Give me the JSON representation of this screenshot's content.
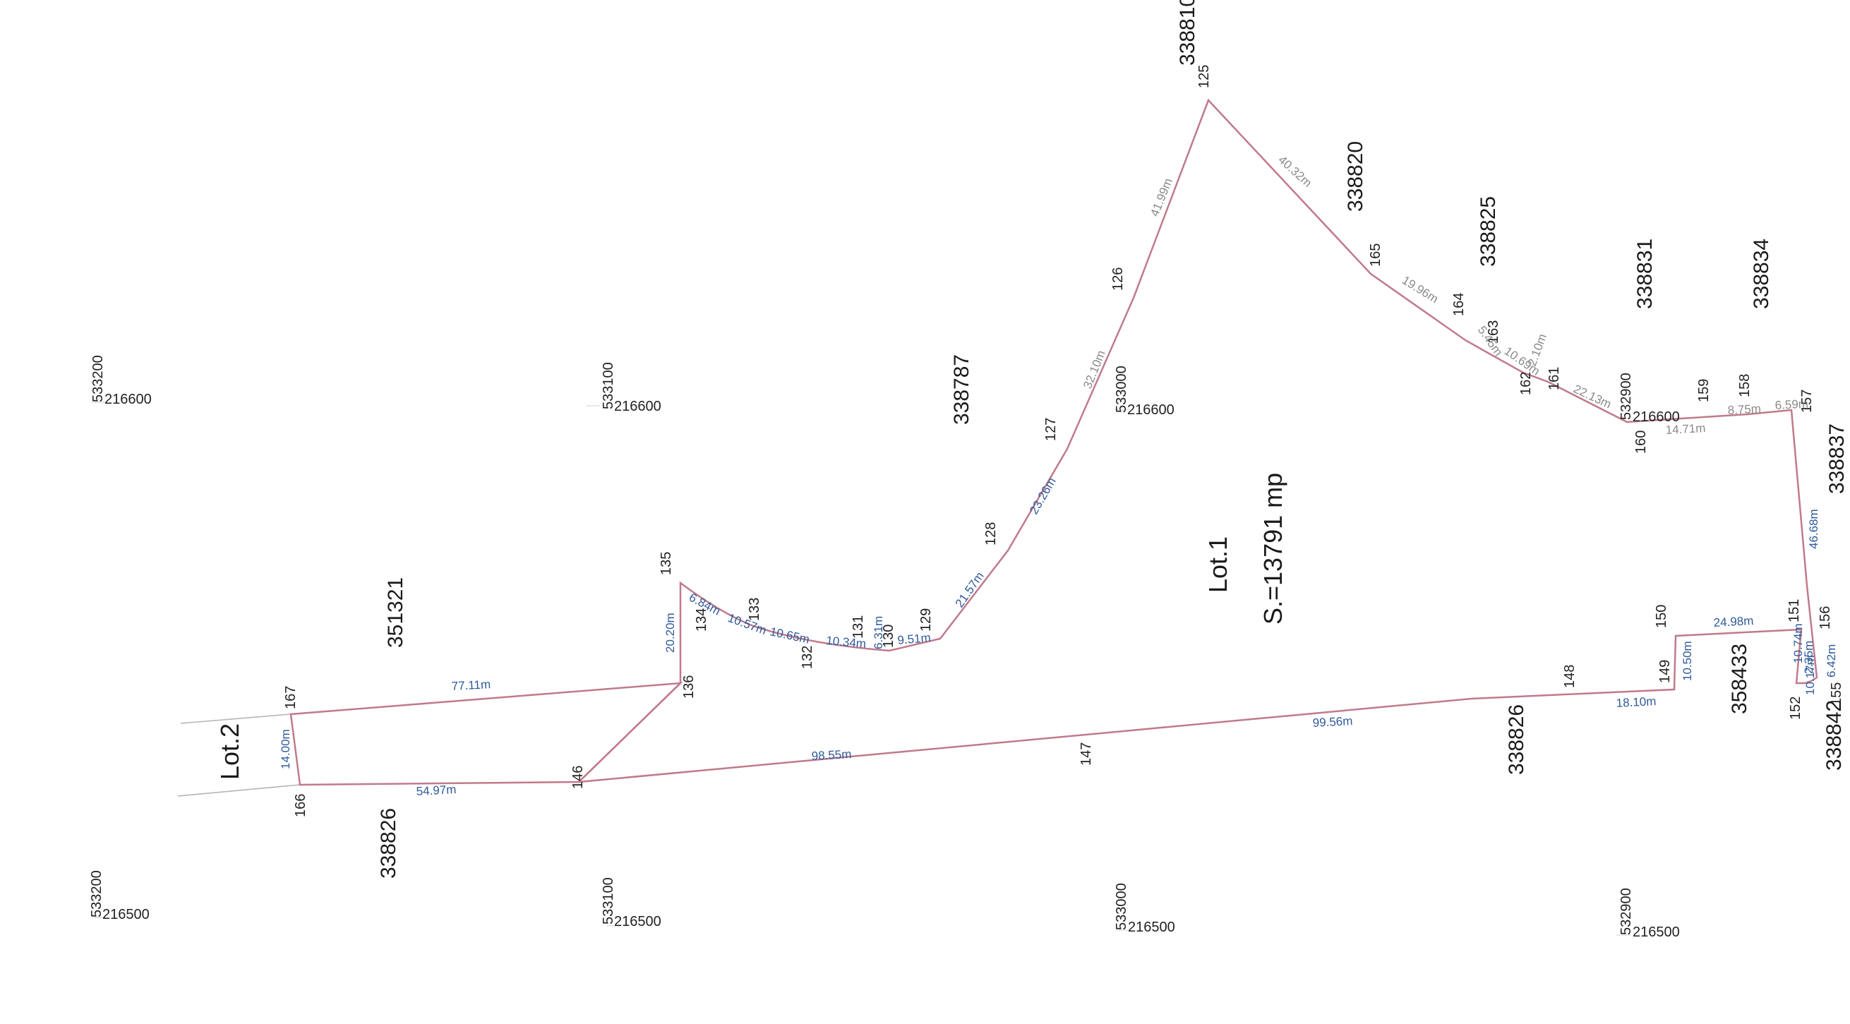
{
  "colors": {
    "boundary": "#c07a8c",
    "outer_line": "#b5b5b5",
    "label_blue": "#2f5a9a",
    "label_gray": "#8a8a8a",
    "text": "#1a1a1a"
  },
  "lots": {
    "lot1_label": "Lot.1",
    "lot1_area": "S.=13791 mp",
    "lot2_label": "Lot.2"
  },
  "boundary_lot1": [
    "125",
    "165",
    "164",
    "163",
    "162",
    "161",
    "160",
    "159",
    "158",
    "157",
    "156",
    "155",
    "154",
    "153",
    "152",
    "151",
    "150",
    "149",
    "148",
    "147",
    "146",
    "136",
    "135",
    "134",
    "133",
    "132",
    "131",
    "130",
    "129",
    "128",
    "127",
    "126"
  ],
  "boundary_lot2": [
    "167",
    "136",
    "146",
    "166"
  ],
  "points": [
    {
      "label": "125"
    },
    {
      "label": "126"
    },
    {
      "label": "127"
    },
    {
      "label": "128"
    },
    {
      "label": "129"
    },
    {
      "label": "130"
    },
    {
      "label": "131"
    },
    {
      "label": "132"
    },
    {
      "label": "133"
    },
    {
      "label": "134"
    },
    {
      "label": "135"
    },
    {
      "label": "136"
    },
    {
      "label": "146"
    },
    {
      "label": "147"
    },
    {
      "label": "148"
    },
    {
      "label": "149"
    },
    {
      "label": "150"
    },
    {
      "label": "151"
    },
    {
      "label": "152"
    },
    {
      "label": "155"
    },
    {
      "label": "156"
    },
    {
      "label": "157"
    },
    {
      "label": "158"
    },
    {
      "label": "159"
    },
    {
      "label": "160"
    },
    {
      "label": "161"
    },
    {
      "label": "162"
    },
    {
      "label": "163"
    },
    {
      "label": "164"
    },
    {
      "label": "165"
    },
    {
      "label": "166"
    },
    {
      "label": "167"
    }
  ],
  "distances": [
    {
      "text": "41.99m",
      "tone": "gray"
    },
    {
      "text": "40.32m",
      "tone": "gray"
    },
    {
      "text": "19.96m",
      "tone": "gray"
    },
    {
      "text": "5.45m",
      "tone": "gray"
    },
    {
      "text": "10.69m",
      "tone": "gray"
    },
    {
      "text": "2.10m",
      "tone": "gray"
    },
    {
      "text": "22.13m",
      "tone": "gray"
    },
    {
      "text": "14.71m",
      "tone": "gray"
    },
    {
      "text": "8.75m",
      "tone": "gray"
    },
    {
      "text": "6.59m",
      "tone": "gray"
    },
    {
      "text": "32.10m",
      "tone": "gray"
    },
    {
      "text": "23.26m",
      "tone": "blue"
    },
    {
      "text": "21.57m",
      "tone": "blue"
    },
    {
      "text": "9.51m",
      "tone": "blue"
    },
    {
      "text": "6.31m",
      "tone": "blue"
    },
    {
      "text": "10.34m",
      "tone": "blue"
    },
    {
      "text": "10.65m",
      "tone": "blue"
    },
    {
      "text": "10.57m",
      "tone": "blue"
    },
    {
      "text": "6.84m",
      "tone": "blue"
    },
    {
      "text": "20.20m",
      "tone": "blue"
    },
    {
      "text": "77.11m",
      "tone": "blue"
    },
    {
      "text": "14.00m",
      "tone": "blue"
    },
    {
      "text": "54.97m",
      "tone": "blue"
    },
    {
      "text": "98.55m",
      "tone": "blue"
    },
    {
      "text": "99.56m",
      "tone": "blue"
    },
    {
      "text": "18.10m",
      "tone": "blue"
    },
    {
      "text": "10.50m",
      "tone": "blue"
    },
    {
      "text": "24.98m",
      "tone": "blue"
    },
    {
      "text": "10.74m",
      "tone": "blue"
    },
    {
      "text": "10.17m",
      "tone": "blue"
    },
    {
      "text": "2.35m",
      "tone": "blue"
    },
    {
      "text": "6.42m",
      "tone": "blue"
    },
    {
      "text": "46.68m",
      "tone": "blue"
    }
  ],
  "parcels": [
    {
      "label": "338810"
    },
    {
      "label": "338820"
    },
    {
      "label": "338825"
    },
    {
      "label": "338831"
    },
    {
      "label": "338834"
    },
    {
      "label": "338837"
    },
    {
      "label": "338787"
    },
    {
      "label": "351321"
    },
    {
      "label": "338826"
    },
    {
      "label": "338826"
    },
    {
      "label": "358433"
    },
    {
      "label": "338842"
    }
  ],
  "grid": [
    {
      "e": "533200",
      "n": "216600"
    },
    {
      "e": "533100",
      "n": "216600"
    },
    {
      "e": "533000",
      "n": "216600"
    },
    {
      "e": "532900",
      "n": "216600"
    },
    {
      "e": "533200",
      "n": "216500"
    },
    {
      "e": "533100",
      "n": "216500"
    },
    {
      "e": "533000",
      "n": "216500"
    },
    {
      "e": "532900",
      "n": "216500"
    }
  ]
}
